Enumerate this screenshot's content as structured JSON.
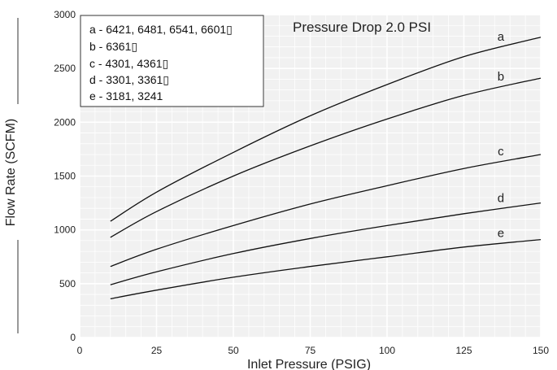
{
  "chart_data": {
    "type": "line",
    "title": "Pressure Drop 2.0 PSI",
    "xlabel": "Inlet Pressure (PSIG)",
    "ylabel": "Flow Rate (SCFM)",
    "xlim": [
      0,
      150
    ],
    "ylim": [
      0,
      3000
    ],
    "x_ticks": [
      0,
      25,
      50,
      75,
      100,
      125,
      150
    ],
    "y_ticks": [
      0,
      500,
      1000,
      1500,
      2000,
      2500,
      3000
    ],
    "grid": true,
    "legend_position": "top-left",
    "legend": [
      "a - 6421, 6481, 6541, 6601▯",
      "b - 6361▯",
      "c - 4301, 4361▯",
      "d - 3301, 3361▯",
      "e - 3181, 3241"
    ],
    "series": [
      {
        "name": "a",
        "x": [
          10,
          25,
          50,
          75,
          100,
          125,
          150
        ],
        "values": [
          1080,
          1350,
          1720,
          2060,
          2350,
          2610,
          2790
        ]
      },
      {
        "name": "b",
        "x": [
          10,
          25,
          50,
          75,
          100,
          125,
          150
        ],
        "values": [
          930,
          1170,
          1500,
          1780,
          2030,
          2250,
          2410
        ]
      },
      {
        "name": "c",
        "x": [
          10,
          25,
          50,
          75,
          100,
          125,
          150
        ],
        "values": [
          660,
          820,
          1040,
          1240,
          1410,
          1570,
          1700
        ]
      },
      {
        "name": "d",
        "x": [
          10,
          25,
          50,
          75,
          100,
          125,
          150
        ],
        "values": [
          490,
          610,
          780,
          920,
          1040,
          1150,
          1250
        ]
      },
      {
        "name": "e",
        "x": [
          10,
          25,
          50,
          75,
          100,
          125,
          150
        ],
        "values": [
          360,
          440,
          560,
          660,
          750,
          840,
          910
        ]
      }
    ]
  }
}
